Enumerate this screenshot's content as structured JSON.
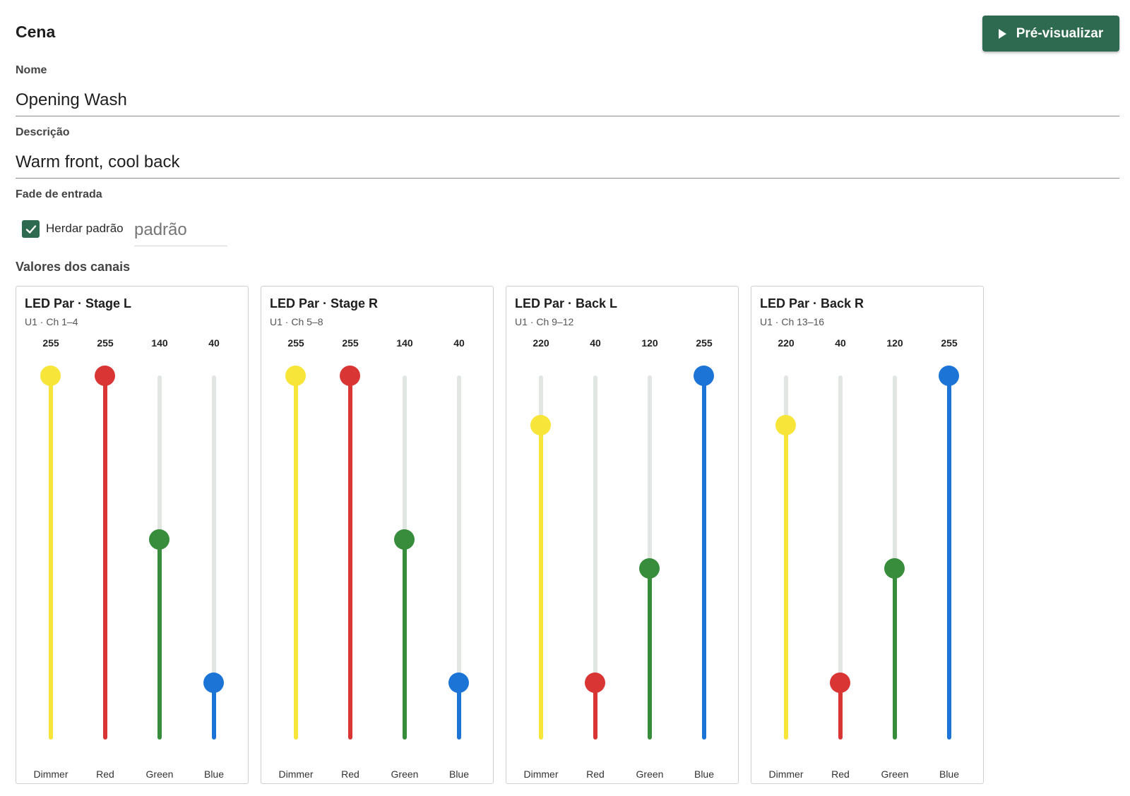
{
  "header": {
    "title": "Cena",
    "preview_label": "Pré-visualizar",
    "preview_icon": "play-icon"
  },
  "form": {
    "name_label": "Nome",
    "name_value": "Opening Wash",
    "description_label": "Descrição",
    "description_value": "Warm front, cool back",
    "fade_label": "Fade de entrada",
    "inherit_label": "Herdar padrão",
    "inherit_checked": true,
    "fade_placeholder": "padrão"
  },
  "channels_section": {
    "label": "Valores dos canais",
    "max_value": 255,
    "colors": {
      "Dimmer": "#f7e539",
      "Red": "#d93535",
      "Green": "#378d3c",
      "Blue": "#1b74d6"
    },
    "fixtures": [
      {
        "name": "LED Par · Stage L",
        "address": "U1 · Ch 1–4",
        "channels": [
          {
            "label": "Dimmer",
            "value": 255
          },
          {
            "label": "Red",
            "value": 255
          },
          {
            "label": "Green",
            "value": 140
          },
          {
            "label": "Blue",
            "value": 40
          }
        ]
      },
      {
        "name": "LED Par · Stage R",
        "address": "U1 · Ch 5–8",
        "channels": [
          {
            "label": "Dimmer",
            "value": 255
          },
          {
            "label": "Red",
            "value": 255
          },
          {
            "label": "Green",
            "value": 140
          },
          {
            "label": "Blue",
            "value": 40
          }
        ]
      },
      {
        "name": "LED Par · Back L",
        "address": "U1 · Ch 9–12",
        "channels": [
          {
            "label": "Dimmer",
            "value": 220
          },
          {
            "label": "Red",
            "value": 40
          },
          {
            "label": "Green",
            "value": 120
          },
          {
            "label": "Blue",
            "value": 255
          }
        ]
      },
      {
        "name": "LED Par · Back R",
        "address": "U1 · Ch 13–16",
        "channels": [
          {
            "label": "Dimmer",
            "value": 220
          },
          {
            "label": "Red",
            "value": 40
          },
          {
            "label": "Green",
            "value": 120
          },
          {
            "label": "Blue",
            "value": 255
          }
        ]
      }
    ]
  }
}
